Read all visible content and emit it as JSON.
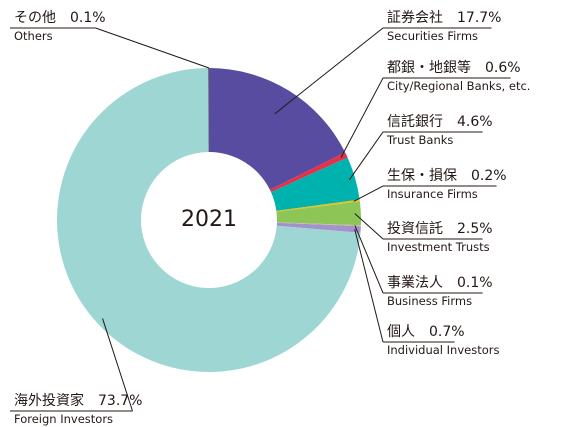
{
  "chart_data": {
    "type": "donut",
    "center_label": "2021",
    "categories": [
      "証券会社",
      "都銀・地銀等",
      "信託銀行",
      "生保・損保",
      "投資信託",
      "事業法人",
      "個人",
      "海外投資家",
      "その他"
    ],
    "subcategories": [
      "Securities Firms",
      "City/Regional Banks, etc.",
      "Trust Banks",
      "Insurance Firms",
      "Investment Trusts",
      "Business Firms",
      "Individual Investors",
      "Foreign Investors",
      "Others"
    ],
    "values": [
      17.7,
      0.6,
      4.6,
      0.2,
      2.5,
      0.1,
      0.7,
      73.7,
      0.1
    ],
    "value_labels": [
      "17.7%",
      "0.6%",
      "4.6%",
      "0.2%",
      "2.5%",
      "0.1%",
      "0.7%",
      "73.7%",
      "0.1%"
    ],
    "colors": [
      "#574c9f",
      "#e5304a",
      "#00b2ae",
      "#e9c31a",
      "#8dc556",
      "#c9b8a0",
      "#a393cc",
      "#9dd6d3",
      "#6e6e6e"
    ]
  }
}
